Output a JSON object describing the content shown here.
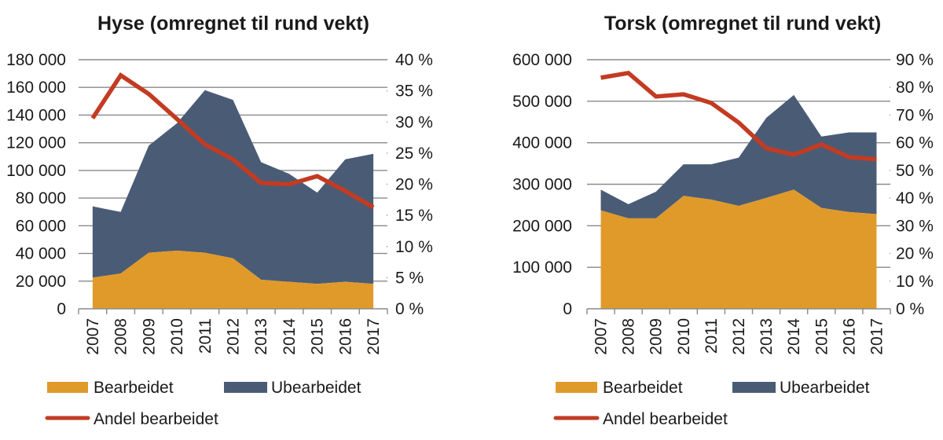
{
  "chart_data": [
    {
      "type": "area",
      "title": "Hyse (omregnet til rund vekt)",
      "categories": [
        "2007",
        "2008",
        "2009",
        "2010",
        "2011",
        "2012",
        "2013",
        "2014",
        "2015",
        "2016",
        "2017"
      ],
      "series": [
        {
          "name": "Bearbeidet",
          "kind": "stacked-area",
          "axis": "left",
          "values": [
            22500,
            25500,
            40500,
            42000,
            40500,
            36500,
            21000,
            19500,
            18000,
            19500,
            18000
          ]
        },
        {
          "name": "Ubearbeidet",
          "kind": "stacked-area",
          "axis": "left",
          "values": [
            51500,
            44500,
            77500,
            92000,
            117500,
            114500,
            85000,
            78000,
            66000,
            88500,
            94000
          ]
        },
        {
          "name": "Andel bearbeidet",
          "kind": "line",
          "axis": "right",
          "values": [
            30.6,
            37.5,
            34.5,
            30.5,
            26.4,
            24.0,
            20.2,
            20.0,
            21.3,
            18.9,
            16.3
          ]
        }
      ],
      "ylim": [
        0,
        180000
      ],
      "y_ticks": [
        "0",
        "20 000",
        "40 000",
        "60 000",
        "80 000",
        "100 000",
        "120 000",
        "140 000",
        "160 000",
        "180 000"
      ],
      "y2lim": [
        0,
        40
      ],
      "y2_ticks": [
        "0 %",
        "5 %",
        "10 %",
        "15 %",
        "20 %",
        "25 %",
        "30 %",
        "35 %",
        "40 %"
      ],
      "xlabel": "",
      "ylabel": "",
      "grid": true,
      "legend": [
        "Bearbeidet",
        "Ubearbeidet",
        "Andel bearbeidet"
      ],
      "legend_position": "bottom"
    },
    {
      "type": "area",
      "title": "Torsk (omregnet til rund vekt)",
      "categories": [
        "2007",
        "2008",
        "2009",
        "2010",
        "2011",
        "2012",
        "2013",
        "2014",
        "2015",
        "2016",
        "2017"
      ],
      "series": [
        {
          "name": "Bearbeidet",
          "kind": "stacked-area",
          "axis": "left",
          "values": [
            237000,
            218000,
            218000,
            272000,
            263000,
            248000,
            267000,
            287000,
            243000,
            233000,
            228000
          ]
        },
        {
          "name": "Ubearbeidet",
          "kind": "stacked-area",
          "axis": "left",
          "values": [
            50000,
            34000,
            64000,
            76000,
            85000,
            116000,
            193000,
            228000,
            172000,
            192000,
            197000
          ]
        },
        {
          "name": "Andel bearbeidet",
          "kind": "line",
          "axis": "right",
          "values": [
            83.5,
            85.2,
            76.7,
            77.5,
            74.4,
            67.3,
            58.0,
            55.7,
            59.4,
            54.8,
            54.0
          ]
        }
      ],
      "ylim": [
        0,
        600000
      ],
      "y_ticks": [
        "0",
        "100 000",
        "200 000",
        "300 000",
        "400 000",
        "500 000",
        "600 000"
      ],
      "y2lim": [
        0,
        90
      ],
      "y2_ticks": [
        "0 %",
        "10 %",
        "20 %",
        "30 %",
        "40 %",
        "50 %",
        "60 %",
        "70 %",
        "80 %",
        "90 %"
      ],
      "xlabel": "",
      "ylabel": "",
      "grid": true,
      "legend": [
        "Bearbeidet",
        "Ubearbeidet",
        "Andel bearbeidet"
      ],
      "legend_position": "bottom"
    }
  ],
  "colors": {
    "Bearbeidet": "#e09a2a",
    "Ubearbeidet": "#4a5c75",
    "Andel bearbeidet": "#c23b22"
  }
}
